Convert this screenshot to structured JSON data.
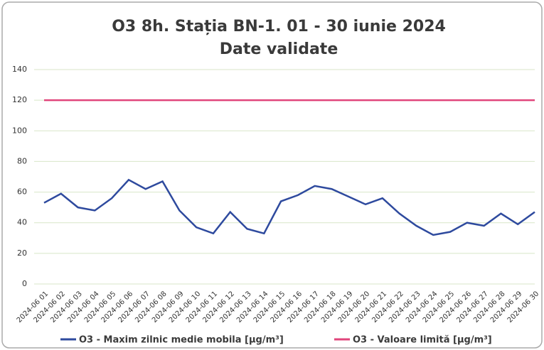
{
  "chart_data": {
    "type": "line",
    "title": "O3 8h. Stația BN-1. 01 - 30 iunie 2024",
    "subtitle": "Date validate",
    "categories": [
      "2024-06 01",
      "2024-06 02",
      "2024-06 03",
      "2024-06 04",
      "2024-06 05",
      "2024-06 06",
      "2024-06 07",
      "2024-06 08",
      "2024-06 09",
      "2024-06 10",
      "2024-06 11",
      "2024-06 12",
      "2024-06 13",
      "2024-06 14",
      "2024-06 15",
      "2024-06 16",
      "2024-06 17",
      "2024-06 18",
      "2024-06 19",
      "2024-06 20",
      "2024-06 21",
      "2024-06 22",
      "2024-06 23",
      "2024-06 24",
      "2024-06 25",
      "2024-06 26",
      "2024-06 27",
      "2024-06 28",
      "2024-06 29",
      "2024-06 30"
    ],
    "series": [
      {
        "name": "O3 - Maxim zilnic medie mobila [µg/m³]",
        "color": "#2e4a9e",
        "values": [
          53,
          59,
          50,
          48,
          56,
          68,
          62,
          67,
          48,
          37,
          33,
          47,
          36,
          33,
          54,
          58,
          64,
          62,
          57,
          52,
          56,
          46,
          38,
          32,
          34,
          40,
          38,
          46,
          39,
          47
        ]
      },
      {
        "name": "O3 - Valoare limită [µg/m³]",
        "color": "#e0457b",
        "values": [
          120,
          120,
          120,
          120,
          120,
          120,
          120,
          120,
          120,
          120,
          120,
          120,
          120,
          120,
          120,
          120,
          120,
          120,
          120,
          120,
          120,
          120,
          120,
          120,
          120,
          120,
          120,
          120,
          120,
          120
        ]
      }
    ],
    "ylim": [
      0,
      140
    ],
    "yticks": [
      0,
      20,
      40,
      60,
      80,
      100,
      120,
      140
    ],
    "grid": true,
    "legend": "bottom"
  }
}
